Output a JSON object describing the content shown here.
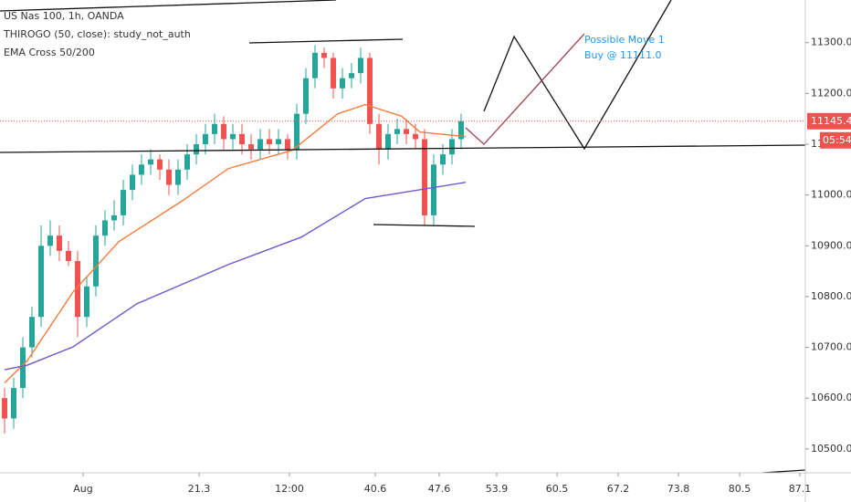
{
  "chart_data": {
    "type": "candlestick",
    "title": "US Nas 100, 1h, OANDA",
    "indicator_labels": [
      "THIROGO (50, close): study_not_auth",
      "EMA Cross 50/200"
    ],
    "annotation": [
      "Possible Move 1",
      "Buy @ 11111.0"
    ],
    "annotation_color": "#2196f3",
    "up_color": "#26a69a",
    "down_color": "#ef5350",
    "x": [
      0,
      1,
      2,
      3,
      4,
      5,
      6,
      7,
      8,
      9,
      10,
      11,
      12,
      13,
      14,
      15,
      16,
      17,
      18,
      19,
      20,
      21,
      22,
      23,
      24,
      25,
      26,
      27,
      28,
      29,
      30,
      31,
      32,
      33,
      34,
      35,
      36,
      37,
      38,
      39,
      40,
      41,
      42,
      43,
      44,
      45,
      46,
      47,
      48,
      49,
      50
    ],
    "open": [
      10600,
      10560,
      10620,
      10700,
      10760,
      10900,
      10920,
      10890,
      10870,
      10760,
      10820,
      10920,
      10950,
      10960,
      11010,
      11040,
      11060,
      11070,
      11050,
      11020,
      11050,
      11080,
      11100,
      11120,
      11140,
      11110,
      11120,
      11100,
      11090,
      11110,
      11100,
      11110,
      11090,
      11160,
      11230,
      11280,
      11270,
      11210,
      11230,
      11240,
      11270,
      11140,
      11090,
      11120,
      11130,
      11120,
      11110,
      10960,
      11060,
      11080,
      11110
    ],
    "high": [
      10620,
      10640,
      10720,
      10780,
      10940,
      10950,
      10940,
      10910,
      10890,
      10840,
      10940,
      10970,
      10990,
      11030,
      11060,
      11080,
      11090,
      11080,
      11070,
      11070,
      11100,
      11120,
      11140,
      11160,
      11155,
      11140,
      11140,
      11120,
      11130,
      11130,
      11130,
      11120,
      11180,
      11250,
      11295,
      11290,
      11280,
      11250,
      11260,
      11290,
      11280,
      11160,
      11140,
      11150,
      11150,
      11140,
      11130,
      11080,
      11100,
      11130,
      11160
    ],
    "low": [
      10530,
      10540,
      10600,
      10680,
      10740,
      10880,
      10870,
      10860,
      10720,
      10740,
      10800,
      10900,
      10930,
      10940,
      10990,
      11020,
      11040,
      11030,
      11000,
      11000,
      11030,
      11060,
      11080,
      11100,
      11090,
      11090,
      11080,
      11070,
      11070,
      11080,
      11080,
      11070,
      11070,
      11140,
      11210,
      11250,
      11190,
      11190,
      11210,
      11220,
      11120,
      11060,
      11070,
      11100,
      11100,
      11090,
      10940,
      10940,
      11040,
      11060,
      11090
    ],
    "close": [
      10560,
      10620,
      10700,
      10760,
      10900,
      10920,
      10890,
      10870,
      10760,
      10820,
      10920,
      10950,
      10960,
      11010,
      11040,
      11060,
      11070,
      11050,
      11020,
      11050,
      11080,
      11100,
      11120,
      11140,
      11110,
      11120,
      11100,
      11090,
      11110,
      11100,
      11110,
      11090,
      11160,
      11230,
      11280,
      11270,
      11210,
      11230,
      11240,
      11270,
      11140,
      11090,
      11120,
      11130,
      11120,
      11110,
      10960,
      11060,
      11080,
      11110,
      11145.4
    ],
    "indicators": [
      {
        "color": "#f57c3c",
        "x": [
          0,
          2.5,
          7.5,
          12.5,
          19.5,
          24.5,
          31.5,
          36.5,
          39.5,
          43.5,
          45.5,
          50.5
        ],
        "values": [
          10630,
          10674,
          10809,
          10908,
          10989,
          11052,
          11088,
          11160,
          11178,
          11155,
          11124,
          11115
        ]
      },
      {
        "color": "#6a5acd",
        "x": [
          0,
          2.5,
          7.5,
          14.5,
          24.5,
          32.5,
          39.5,
          50.5
        ],
        "values": [
          10656,
          10665,
          10701,
          10786,
          10863,
          10917,
          10993,
          11025
        ]
      }
    ],
    "last_price": 11145.4,
    "countdown": "05:54",
    "price_color": "#ef5350",
    "xlim": [
      -0.5,
      87.7
    ],
    "xticks": [
      {
        "value": 8.6,
        "label": "Aug"
      },
      21.3,
      {
        "value": 31.2,
        "label": "12:00"
      },
      40.6,
      47.6,
      53.9,
      60.5,
      67.2,
      73.8,
      80.5,
      87.1
    ],
    "ylim": [
      10453,
      11384
    ],
    "yticks": [
      {
        "value": 10500,
        "label": "10500.0"
      },
      {
        "value": 10600,
        "label": "10600.0"
      },
      {
        "value": 10700,
        "label": "10700.0"
      },
      {
        "value": 10800,
        "label": "10800.0"
      },
      {
        "value": 10900,
        "label": "10900.0"
      },
      {
        "value": 11000,
        "label": "11000.0"
      },
      {
        "value": 11100,
        "label": "11100.0"
      },
      {
        "value": 11200,
        "label": "11200.0"
      },
      {
        "value": 11300,
        "label": "11300.0"
      }
    ]
  }
}
